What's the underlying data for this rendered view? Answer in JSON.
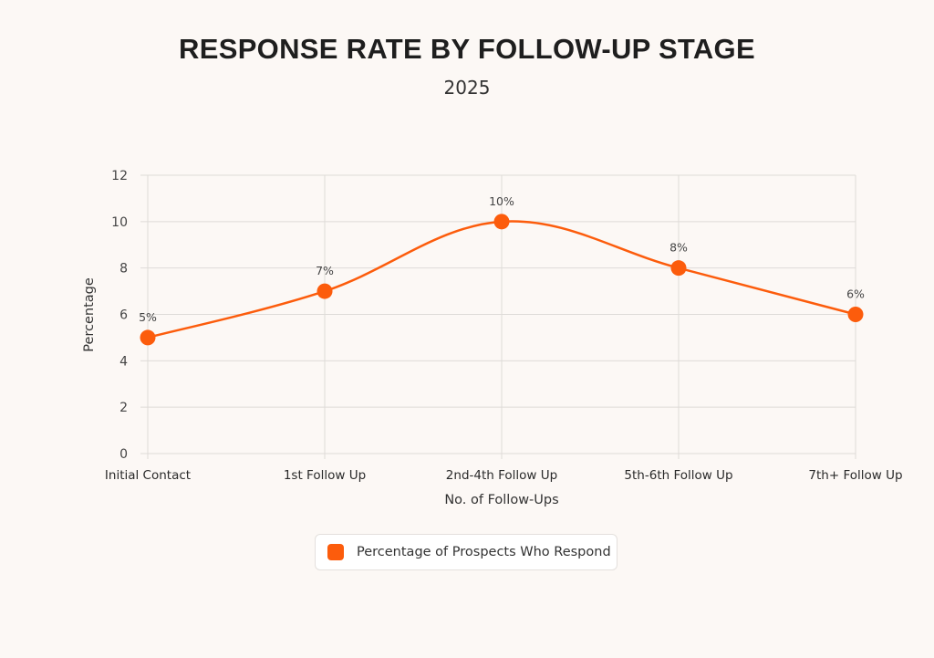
{
  "chart_data": {
    "type": "line",
    "title": "RESPONSE RATE BY FOLLOW-UP STAGE",
    "subtitle": "2025",
    "xlabel": "No. of Follow-Ups",
    "ylabel": "Percentage",
    "categories": [
      "Initial Contact",
      "1st Follow Up",
      "2nd-4th Follow Up",
      "5th-6th Follow Up",
      "7th+ Follow Up"
    ],
    "series": [
      {
        "name": "Percentage of Prospects Who Respond",
        "values": [
          5,
          7,
          10,
          8,
          6
        ],
        "labels": [
          "5%",
          "7%",
          "10%",
          "8%",
          "6%"
        ],
        "color": "#fc5c0c"
      }
    ],
    "ylim": [
      0,
      12
    ],
    "yticks": [
      "0",
      "2",
      "4",
      "6",
      "8",
      "10",
      "12"
    ],
    "grid": true,
    "smooth": true,
    "legend_position": "bottom"
  }
}
